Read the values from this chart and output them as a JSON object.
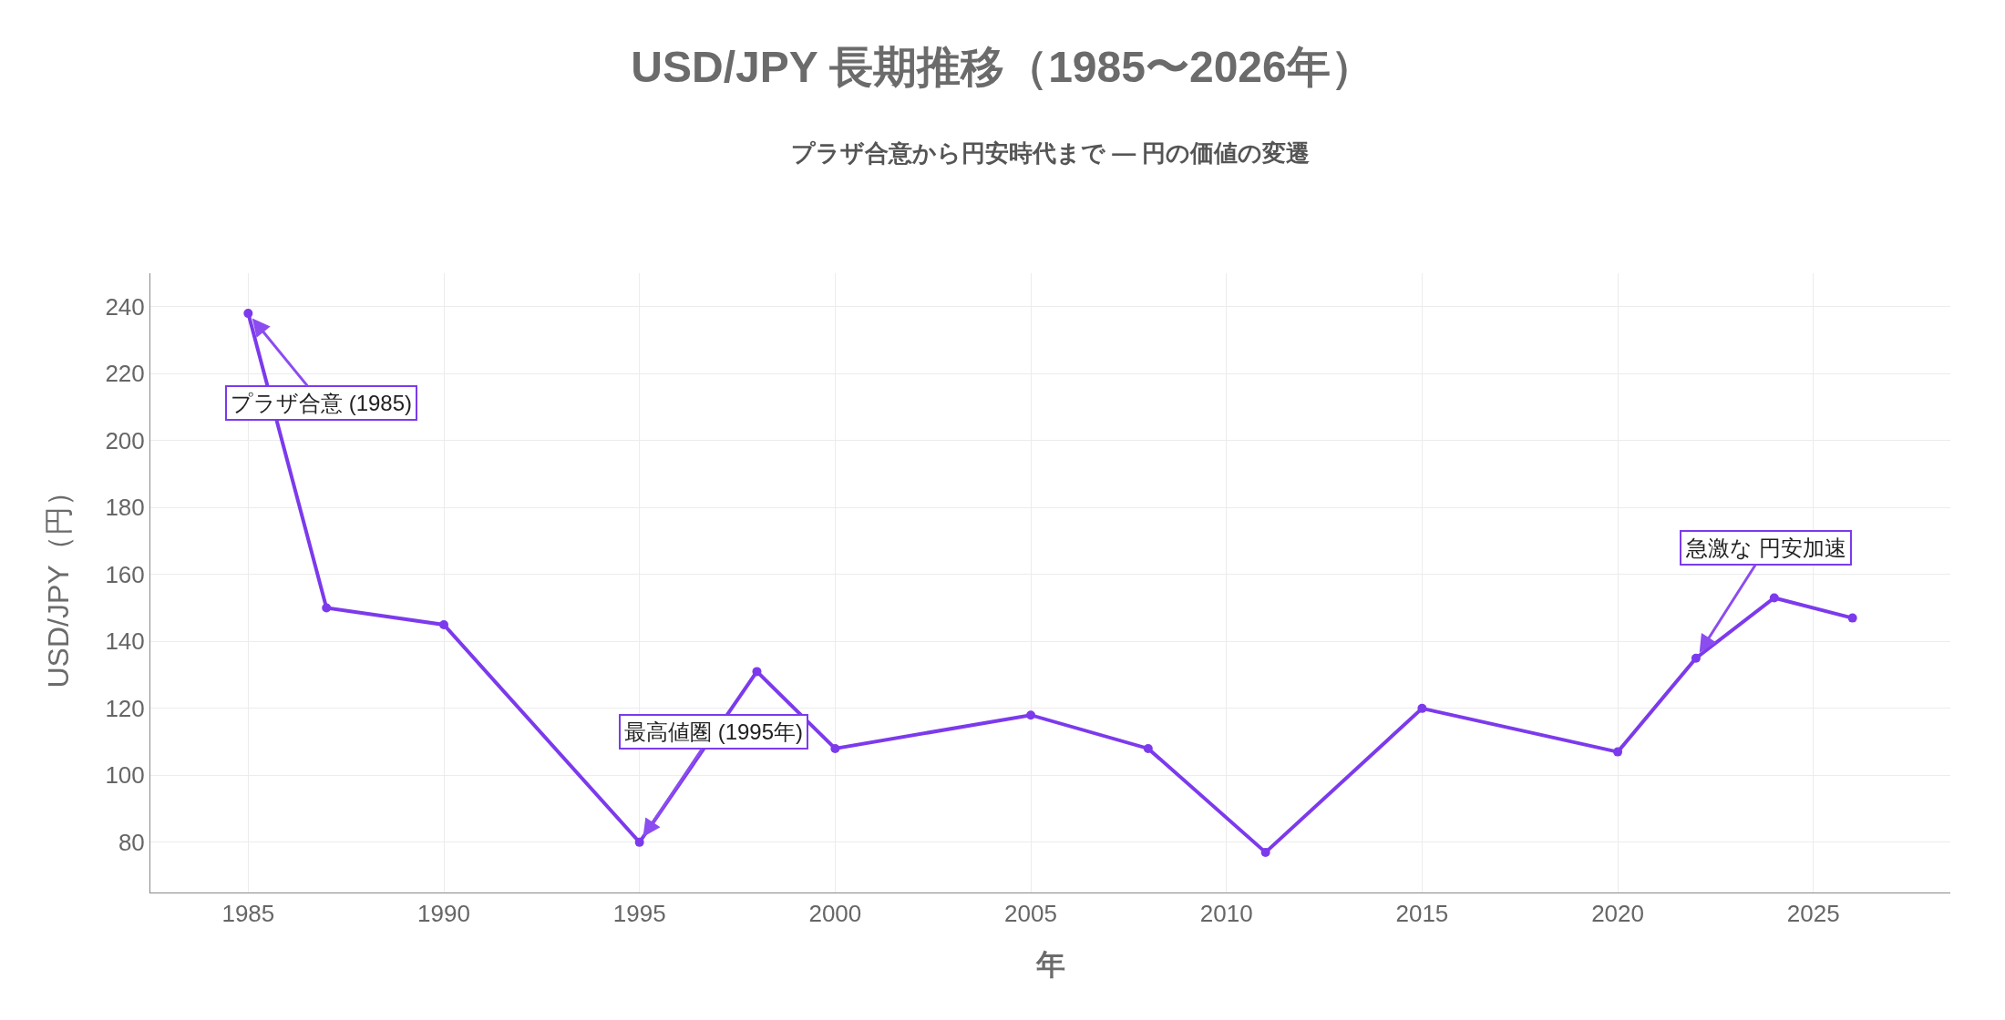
{
  "chart_data": {
    "type": "line",
    "title": "USD/JPY 長期推移（1985〜2026年）",
    "subtitle": "プラザ合意から円安時代まで — 円の価値の変遷",
    "xlabel": "年",
    "ylabel": "USD/JPY（円）",
    "x": [
      1985,
      1987,
      1990,
      1995,
      1998,
      2000,
      2005,
      2008,
      2011,
      2015,
      2020,
      2022,
      2024,
      2026
    ],
    "series": [
      {
        "color": "#7c3aed",
        "values": [
          238,
          150,
          145,
          80,
          131,
          108,
          118,
          108,
          77,
          120,
          107,
          135,
          153,
          147
        ]
      }
    ],
    "xlim": [
      1982.5,
      2028.5
    ],
    "xticks": [
      1985,
      1990,
      1995,
      2000,
      2005,
      2010,
      2015,
      2020,
      2025
    ],
    "ylim": [
      65,
      250
    ],
    "yticks": [
      80,
      100,
      120,
      140,
      160,
      180,
      200,
      220,
      240
    ],
    "annotations": [
      {
        "text": "プラザ合意 (1985)",
        "x": 1985,
        "y": 238
      },
      {
        "text": "最高値圏 (1995年)",
        "x": 1995,
        "y": 80
      },
      {
        "text": "急激な 円安加速",
        "x": 2022,
        "y": 135
      }
    ],
    "grid": true,
    "marker": "circle",
    "line_style": "solid"
  }
}
